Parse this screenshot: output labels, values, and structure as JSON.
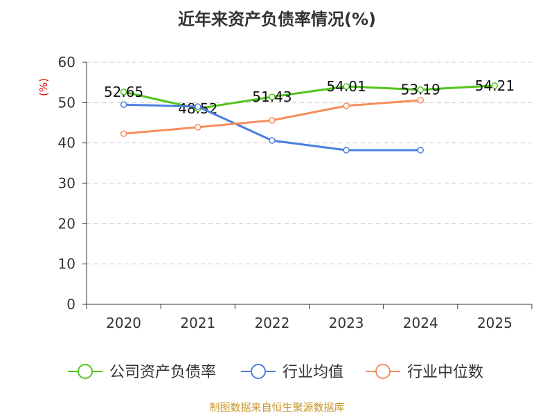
{
  "chart_data": {
    "type": "line",
    "title": "近年来资产负债率情况(%)",
    "ylabel": "(%)",
    "xlabel": "",
    "ylim": [
      0,
      60
    ],
    "yticks": [
      0,
      10,
      20,
      30,
      40,
      50,
      60
    ],
    "grid": true,
    "legend_position": "bottom",
    "categories": [
      "2020",
      "2021",
      "2022",
      "2023",
      "2024",
      "2025"
    ],
    "series": [
      {
        "name": "公司资产负债率",
        "color": "#52c41a",
        "values": [
          52.65,
          48.52,
          51.43,
          54.01,
          53.19,
          54.21
        ],
        "labels": [
          "52.65",
          "48.52",
          "51.43",
          "54.01",
          "53.19",
          "54.21"
        ]
      },
      {
        "name": "行业均值",
        "color": "#4a7ee0",
        "values": [
          49.5,
          49.0,
          40.6,
          38.2,
          38.2,
          null
        ]
      },
      {
        "name": "行业中位数",
        "color": "#f98c5a",
        "values": [
          42.3,
          43.9,
          45.6,
          49.2,
          50.6,
          null
        ]
      }
    ]
  },
  "footer": "制图数据来自恒生聚源数据库"
}
